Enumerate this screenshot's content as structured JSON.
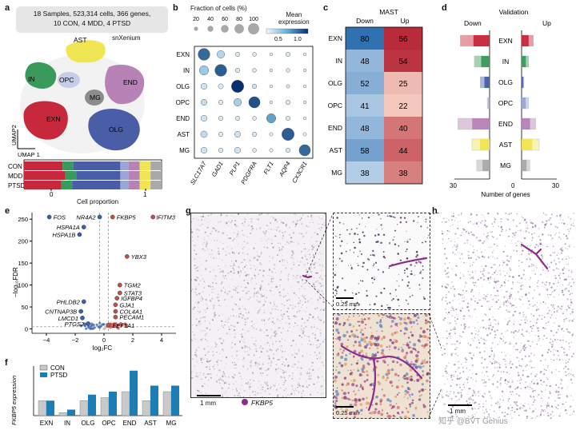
{
  "panels": {
    "a": "a",
    "b": "b",
    "c": "c",
    "d": "d",
    "e": "e",
    "f": "f",
    "g": "g",
    "h": "h"
  },
  "a": {
    "summary_line1": "18 Samples, 523,314 cells, 366 genes,",
    "summary_line2": "10 CON, 4 MDD, 4 PTSD",
    "method": "snXenium",
    "umap_y": "UMAP2",
    "umap_x": "UMAP 1",
    "cluster_labels": [
      "AST",
      "IN",
      "OPC",
      "END",
      "MG",
      "EXN",
      "OLG"
    ],
    "bar_rows": [
      "CON",
      "MDD",
      "PTSD"
    ],
    "bar_axis": "Cell proportion",
    "bar_ticks": [
      "0",
      "1"
    ],
    "cell_colors": {
      "EXN": "#c8283c",
      "IN": "#3a9a5c",
      "OLG": "#4a5ea8",
      "OPC": "#9aa6d4",
      "END": "#b783b6",
      "AST": "#f0e552",
      "MG": "#a9a9a9"
    },
    "proportions": {
      "CON": [
        0.28,
        0.08,
        0.34,
        0.06,
        0.08,
        0.08,
        0.08
      ],
      "MDD": [
        0.3,
        0.08,
        0.32,
        0.06,
        0.08,
        0.08,
        0.08
      ],
      "PTSD": [
        0.27,
        0.08,
        0.35,
        0.06,
        0.08,
        0.08,
        0.08
      ]
    },
    "proportion_order": [
      "EXN",
      "IN",
      "OLG",
      "OPC",
      "END",
      "AST",
      "MG"
    ]
  },
  "b": {
    "size_title": "Fraction of cells (%)",
    "size_ticks": [
      "20",
      "40",
      "60",
      "80",
      "100"
    ],
    "color_title_line1": "Mean",
    "color_title_line2": "expression",
    "color_ticks": [
      "0.5",
      "1.0"
    ],
    "rows": [
      "EXN",
      "IN",
      "OLG",
      "OPC",
      "END",
      "AST",
      "MG"
    ],
    "cols": [
      "SLC17A7",
      "GAD1",
      "PLP1",
      "PDGFRA",
      "FLT1",
      "AQP4",
      "CX3CR1"
    ]
  },
  "c": {
    "title": "MAST",
    "col_down": "Down",
    "col_up": "Up",
    "rows": [
      "EXN",
      "IN",
      "OLG",
      "OPC",
      "END",
      "AST",
      "MG"
    ],
    "down": [
      80,
      48,
      52,
      41,
      48,
      58,
      38
    ],
    "up": [
      56,
      54,
      25,
      22,
      40,
      44,
      38
    ]
  },
  "d": {
    "title": "Validation",
    "down": "Down",
    "up": "Up",
    "rows": [
      "EXN",
      "IN",
      "OLG",
      "OPC",
      "END",
      "AST",
      "MG"
    ],
    "xlabel": "Number of genes",
    "ticks_left": [
      "30",
      "0"
    ],
    "ticks_right": [
      "30"
    ]
  },
  "e": {
    "ylabel": "−log₁₀FDR",
    "xlabel": "log₂FC",
    "xticks": [
      "−4",
      "−2",
      "0",
      "2",
      "4"
    ],
    "yticks": [
      "0",
      "50",
      "100",
      "150",
      "200",
      "250"
    ],
    "genes": [
      "FOS",
      "HSPA1A",
      "HSPA1B",
      "NR4A2",
      "FKBP5",
      "IFITM3",
      "YBX3",
      "TGM2",
      "STAT3",
      "IGFBP4",
      "GJA1",
      "COL4A1",
      "PECAM1",
      "EEF1A1",
      "PHLDB2",
      "CNTNAP3B",
      "LMCD1",
      "PTGS2"
    ]
  },
  "f": {
    "ylabel": "FKBP5 expression",
    "legend": [
      "CON",
      "PTSD"
    ],
    "categories": [
      "EXN",
      "IN",
      "OLG",
      "OPC",
      "END",
      "AST",
      "MG"
    ],
    "colors": {
      "CON": "#c9c9c9",
      "PTSD": "#1b7fb6"
    }
  },
  "g": {
    "scale_main": "1 mm",
    "scale_inset1": "0.25 mm",
    "scale_inset2": "0.25 mm",
    "legend_gene": "FKBP5"
  },
  "h": {
    "scale": "1 mm",
    "watermark": "知乎 @BVT Genius"
  },
  "chart_data": [
    {
      "type": "bar",
      "title": "",
      "categories": [
        "CON",
        "MDD",
        "PTSD"
      ],
      "stacked": true,
      "series": [
        {
          "name": "EXN",
          "values": [
            0.28,
            0.3,
            0.27
          ]
        },
        {
          "name": "IN",
          "values": [
            0.08,
            0.08,
            0.08
          ]
        },
        {
          "name": "OLG",
          "values": [
            0.34,
            0.32,
            0.35
          ]
        },
        {
          "name": "OPC",
          "values": [
            0.06,
            0.06,
            0.06
          ]
        },
        {
          "name": "END",
          "values": [
            0.08,
            0.08,
            0.08
          ]
        },
        {
          "name": "AST",
          "values": [
            0.08,
            0.08,
            0.08
          ]
        },
        {
          "name": "MG",
          "values": [
            0.08,
            0.08,
            0.08
          ]
        }
      ],
      "xlabel": "Cell proportion",
      "xlim": [
        0,
        1
      ]
    },
    {
      "type": "scatter",
      "title": "",
      "rows": [
        "EXN",
        "IN",
        "OLG",
        "OPC",
        "END",
        "AST",
        "MG"
      ],
      "cols": [
        "SLC17A7",
        "GAD1",
        "PLP1",
        "PDGFRA",
        "FLT1",
        "AQP4",
        "CX3CR1"
      ],
      "fraction_pct": [
        [
          95,
          55,
          25,
          20,
          10,
          25,
          10
        ],
        [
          70,
          95,
          25,
          20,
          10,
          20,
          10
        ],
        [
          40,
          30,
          100,
          25,
          10,
          15,
          10
        ],
        [
          40,
          25,
          55,
          90,
          10,
          25,
          10
        ],
        [
          40,
          25,
          25,
          20,
          70,
          25,
          10
        ],
        [
          45,
          25,
          40,
          25,
          15,
          100,
          15
        ],
        [
          40,
          25,
          40,
          20,
          15,
          25,
          90
        ]
      ],
      "mean_expression": [
        [
          0.85,
          0.25,
          0.1,
          0.1,
          0.05,
          0.1,
          0.05
        ],
        [
          0.35,
          0.9,
          0.1,
          0.1,
          0.05,
          0.1,
          0.05
        ],
        [
          0.15,
          0.1,
          1.1,
          0.15,
          0.05,
          0.1,
          0.05
        ],
        [
          0.2,
          0.1,
          0.3,
          0.95,
          0.05,
          0.1,
          0.05
        ],
        [
          0.15,
          0.1,
          0.1,
          0.1,
          0.6,
          0.1,
          0.05
        ],
        [
          0.2,
          0.1,
          0.15,
          0.1,
          0.05,
          0.9,
          0.05
        ],
        [
          0.15,
          0.1,
          0.15,
          0.1,
          0.05,
          0.1,
          0.85
        ]
      ],
      "legend": "Fraction of cells (%); Mean expression"
    },
    {
      "type": "heatmap",
      "title": "MAST",
      "rows": [
        "EXN",
        "IN",
        "OLG",
        "OPC",
        "END",
        "AST",
        "MG"
      ],
      "cols": [
        "Down",
        "Up"
      ],
      "values": [
        [
          80,
          56
        ],
        [
          48,
          54
        ],
        [
          52,
          25
        ],
        [
          41,
          22
        ],
        [
          48,
          40
        ],
        [
          58,
          44
        ],
        [
          38,
          38
        ]
      ]
    },
    {
      "type": "bar",
      "title": "Validation",
      "categories": [
        "EXN",
        "IN",
        "OLG",
        "OPC",
        "END",
        "AST",
        "MG"
      ],
      "series": [
        {
          "name": "Down",
          "values": [
            25,
            13,
            8,
            2,
            27,
            15,
            11
          ]
        },
        {
          "name": "Up",
          "values": [
            10,
            6,
            2,
            6,
            12,
            15,
            7
          ]
        }
      ],
      "xlabel": "Number of genes",
      "xlim": [
        0,
        30
      ]
    },
    {
      "type": "scatter",
      "title": "",
      "xlabel": "log₂FC",
      "ylabel": "−log₁₀FDR",
      "xlim": [
        -5,
        5
      ],
      "ylim": [
        -10,
        265
      ],
      "points": [
        {
          "label": "FOS",
          "x": -3.8,
          "y": 255
        },
        {
          "label": "HSPA1A",
          "x": -1.4,
          "y": 232
        },
        {
          "label": "HSPA1B",
          "x": -1.7,
          "y": 215
        },
        {
          "label": "NR4A2",
          "x": -0.3,
          "y": 255
        },
        {
          "label": "FKBP5",
          "x": 0.6,
          "y": 255
        },
        {
          "label": "IFITM3",
          "x": 3.4,
          "y": 255
        },
        {
          "label": "YBX3",
          "x": 1.6,
          "y": 165
        },
        {
          "label": "TGM2",
          "x": 1.1,
          "y": 100
        },
        {
          "label": "STAT3",
          "x": 1.1,
          "y": 82
        },
        {
          "label": "IGFBP4",
          "x": 0.9,
          "y": 70
        },
        {
          "label": "GJA1",
          "x": 0.8,
          "y": 55
        },
        {
          "label": "COL4A1",
          "x": 0.8,
          "y": 40
        },
        {
          "label": "PECAM1",
          "x": 0.8,
          "y": 27
        },
        {
          "label": "EEF1A1",
          "x": 0.3,
          "y": 8
        },
        {
          "label": "PHLDB2",
          "x": -1.4,
          "y": 62
        },
        {
          "label": "CNTNAP3B",
          "x": -1.6,
          "y": 40
        },
        {
          "label": "LMCD1",
          "x": -1.5,
          "y": 25
        },
        {
          "label": "PTGS2",
          "x": -1.1,
          "y": 12
        }
      ],
      "ylines": [
        5
      ],
      "xlines": [
        -0.3,
        0.3
      ]
    },
    {
      "type": "bar",
      "title": "",
      "ylabel": "FKBP5 expression",
      "categories": [
        "EXN",
        "IN",
        "OLG",
        "OPC",
        "END",
        "AST",
        "MG"
      ],
      "series": [
        {
          "name": "CON",
          "values": [
            0.05,
            0.01,
            0.05,
            0.06,
            0.08,
            0.05,
            0.08
          ]
        },
        {
          "name": "PTSD",
          "values": [
            0.05,
            0.02,
            0.07,
            0.08,
            0.15,
            0.1,
            0.1
          ]
        }
      ]
    }
  ]
}
